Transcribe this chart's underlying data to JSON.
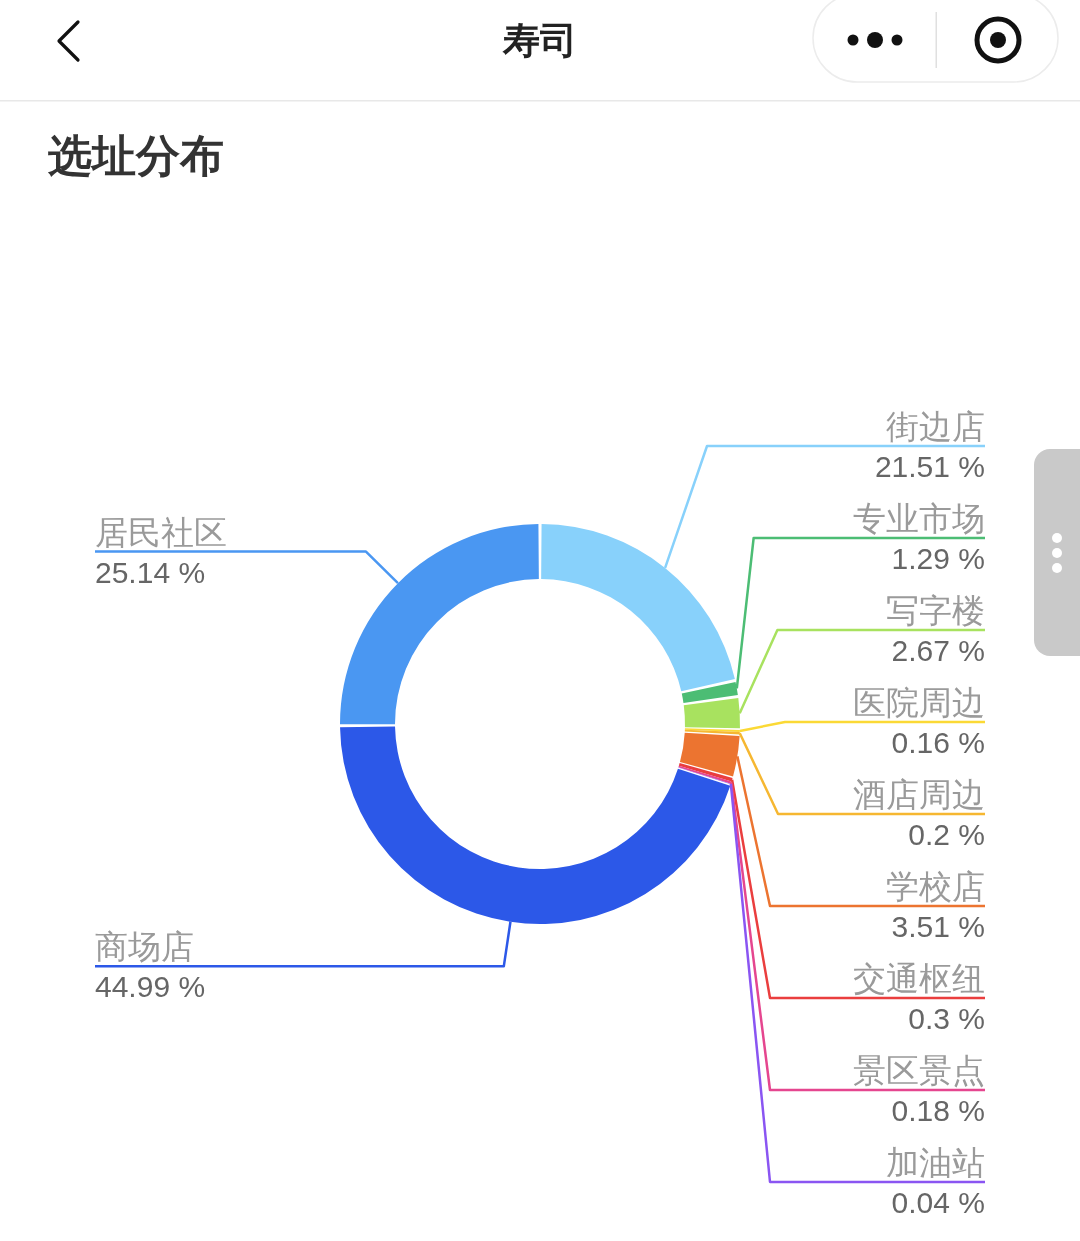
{
  "chart_data": {
    "type": "donut",
    "title": "寿司",
    "subtitle": "选址分布",
    "categories": [
      "街边店",
      "专业市场",
      "写字楼",
      "医院周边",
      "酒店周边",
      "学校店",
      "交通枢纽",
      "景区景点",
      "加油站",
      "商场店",
      "居民社区"
    ],
    "values": [
      21.51,
      1.29,
      2.67,
      0.16,
      0.2,
      3.51,
      0.3,
      0.18,
      0.04,
      44.99,
      25.14
    ],
    "value_labels": [
      "21.51 %",
      "1.29 %",
      "2.67 %",
      "0.16 %",
      "0.2 %",
      "3.51 %",
      "0.3 %",
      "0.18 %",
      "0.04 %",
      "44.99 %",
      "25.14 %"
    ],
    "colors": [
      "#88d1fb",
      "#4cbd74",
      "#a8e25f",
      "#fbd935",
      "#f6b731",
      "#ec7430",
      "#ea3e3e",
      "#e5468f",
      "#8a55f2",
      "#2c58e8",
      "#4a97f2"
    ]
  }
}
